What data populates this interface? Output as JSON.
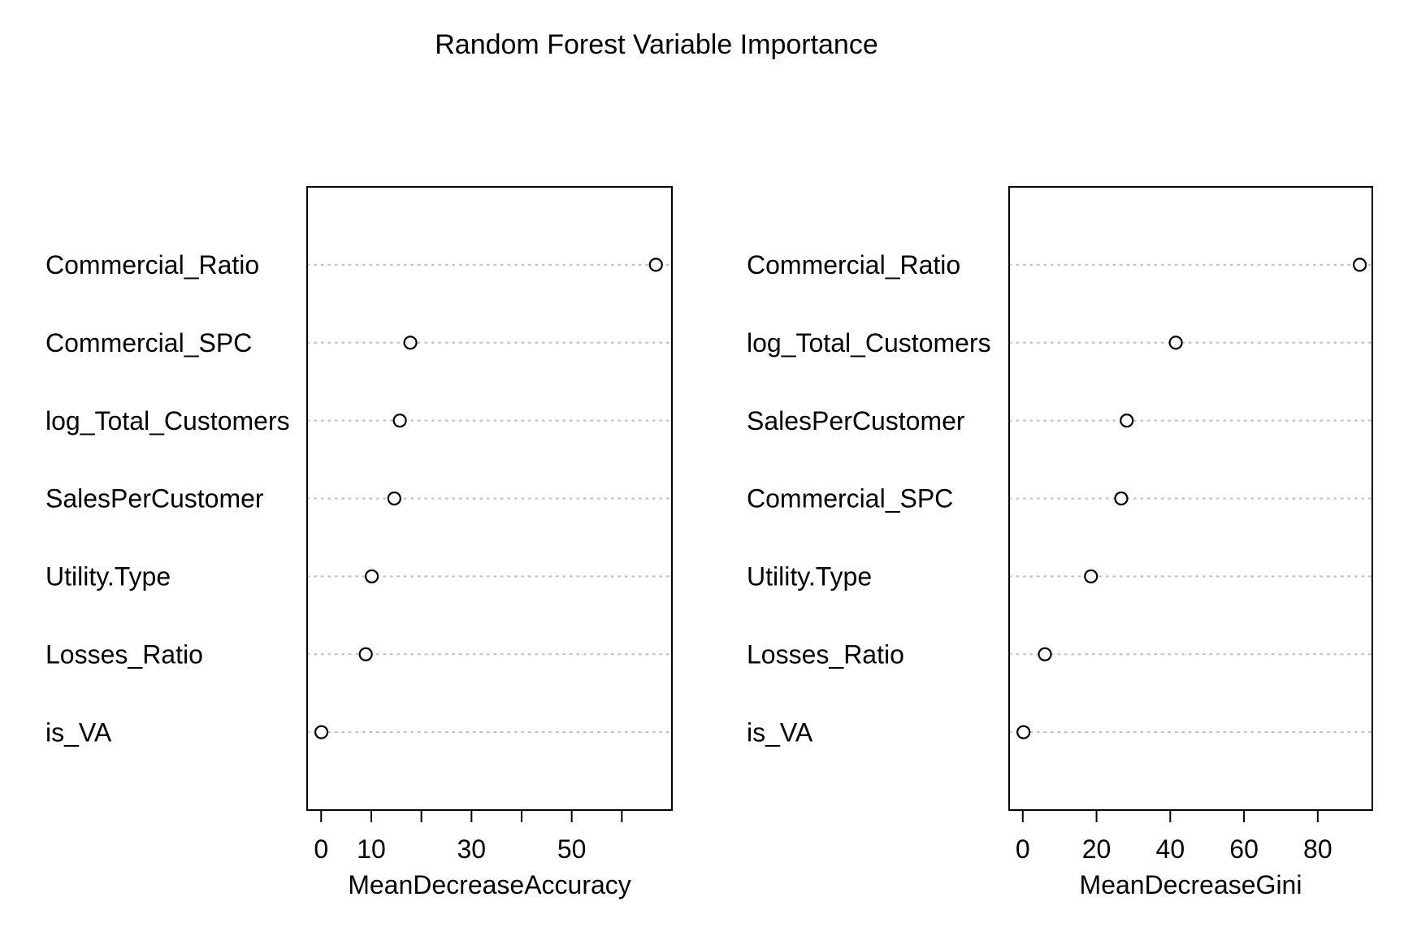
{
  "title": "Random Forest Variable Importance",
  "style": {
    "background": "#ffffff",
    "text_color": "#000000",
    "box_color": "#000000",
    "grid_line_color": "#bebebe",
    "point_stroke_color": "#000000",
    "point_fill_color": "#ffffff"
  },
  "chart_data": [
    {
      "type": "scatter",
      "subtype": "dotchart",
      "title": "",
      "xlabel": "MeanDecreaseAccuracy",
      "ylabel": "",
      "categories": [
        "Commercial_Ratio",
        "Commercial_SPC",
        "log_Total_Customers",
        "SalesPerCustomer",
        "Utility.Type",
        "Losses_Ratio",
        "is_VA"
      ],
      "values": [
        66.8,
        17.8,
        15.7,
        14.6,
        10.1,
        8.9,
        0.05
      ],
      "xlim": [
        -2.8,
        70.0
      ],
      "xticks": [
        0,
        10,
        20,
        30,
        40,
        50,
        60
      ],
      "xtick_labels": [
        "0",
        "10",
        "",
        "30",
        "",
        "50",
        ""
      ],
      "grid": "dotted-horizontal",
      "marker": "open-circle",
      "legend": "none"
    },
    {
      "type": "scatter",
      "subtype": "dotchart",
      "title": "",
      "xlabel": "MeanDecreaseGini",
      "ylabel": "",
      "categories": [
        "Commercial_Ratio",
        "log_Total_Customers",
        "SalesPerCustomer",
        "Commercial_SPC",
        "Utility.Type",
        "Losses_Ratio",
        "is_VA"
      ],
      "values": [
        91.4,
        41.5,
        28.2,
        26.7,
        18.5,
        6.0,
        0.2
      ],
      "xlim": [
        -3.7,
        94.8
      ],
      "xticks": [
        0,
        20,
        40,
        60,
        80
      ],
      "xtick_labels": [
        "0",
        "20",
        "40",
        "60",
        "80"
      ],
      "grid": "dotted-horizontal",
      "marker": "open-circle",
      "legend": "none"
    }
  ]
}
